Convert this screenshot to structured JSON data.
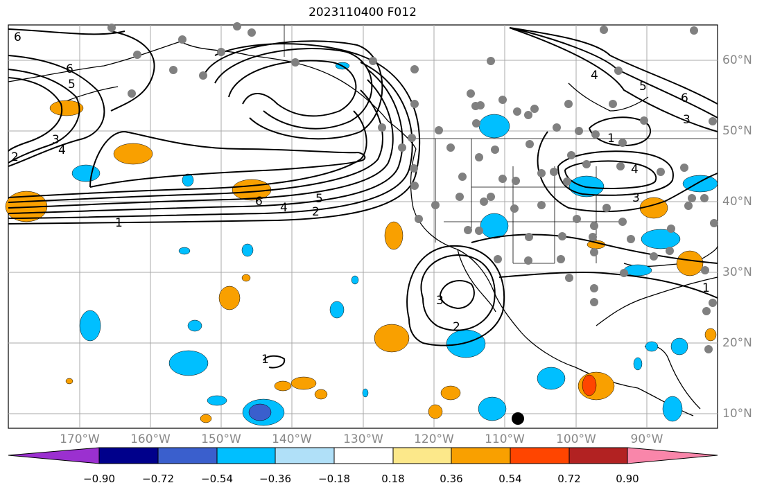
{
  "title": "2023110400 F012",
  "lat_labels": [
    "60°N",
    "50°N",
    "40°N",
    "30°N",
    "20°N",
    "10°N"
  ],
  "lon_labels": [
    "170°W",
    "160°W",
    "150°W",
    "140°W",
    "130°W",
    "120°W",
    "110°W",
    "100°W",
    "90°W"
  ],
  "colorbar": {
    "labels": [
      "−0.90",
      "−0.72",
      "−0.54",
      "−0.36",
      "−0.18",
      "0.18",
      "0.36",
      "0.54",
      "0.72",
      "0.90"
    ],
    "colors": [
      "#9b30d0",
      "#00008b",
      "#3a5fcd",
      "#00bfff",
      "#b0e0f8",
      "#ffffff",
      "#fce88a",
      "#f9a000",
      "#ff4500",
      "#b22222",
      "#f986aa"
    ]
  },
  "contour_labels": [
    "6",
    "6",
    "5",
    "3",
    "4",
    "2",
    "6",
    "5",
    "4",
    "2",
    "1",
    "4",
    "5",
    "6",
    "3",
    "1",
    "4",
    "3",
    "3",
    "2",
    "1",
    "1"
  ],
  "map_colors": {
    "shade_orange": "#f9a000",
    "shade_blue": "#00bfff",
    "shade_dark_blue": "#3a5fcd",
    "shade_red": "#ff4500",
    "station_dot": "#808080"
  }
}
